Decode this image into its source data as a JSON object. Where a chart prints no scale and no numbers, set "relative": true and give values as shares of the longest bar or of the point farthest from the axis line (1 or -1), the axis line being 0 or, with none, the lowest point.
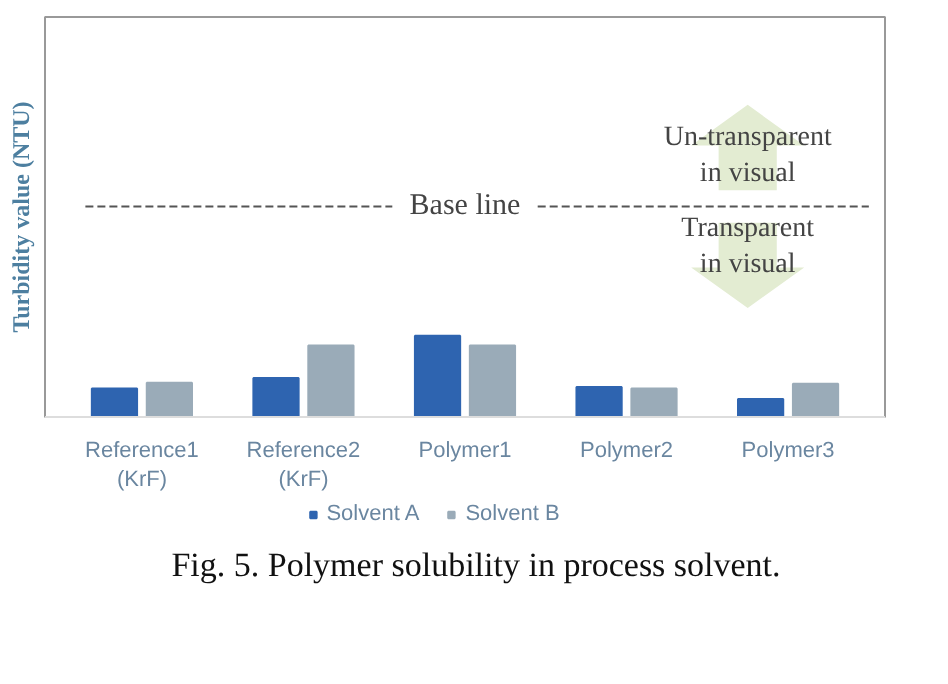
{
  "chart_data": {
    "type": "bar",
    "relative": true,
    "ylabel": "Turbidity value (NTU)",
    "categories": [
      "Reference1\n(KrF)",
      "Reference2\n(KrF)",
      "Polymer1",
      "Polymer2",
      "Polymer3"
    ],
    "series": [
      {
        "name": "Solvent A",
        "color": "#2e64b0",
        "values": [
          0.35,
          0.48,
          1,
          0.37,
          0.22
        ]
      },
      {
        "name": "Solvent B",
        "color": "#9aabb8",
        "values": [
          0.42,
          0.88,
          0.88,
          0.35,
          0.41
        ]
      }
    ],
    "ref_lines": [
      {
        "axis": "y",
        "value": 2.59,
        "label": "Base line",
        "color": "#555555",
        "line_style": "dashed"
      }
    ],
    "annotations": [
      "Un-transparent\nin visual",
      "Transparent\nin visual",
      "Fig. 5. Polymer solubility in process solvent."
    ],
    "legend": "bottom",
    "grid": false
  }
}
